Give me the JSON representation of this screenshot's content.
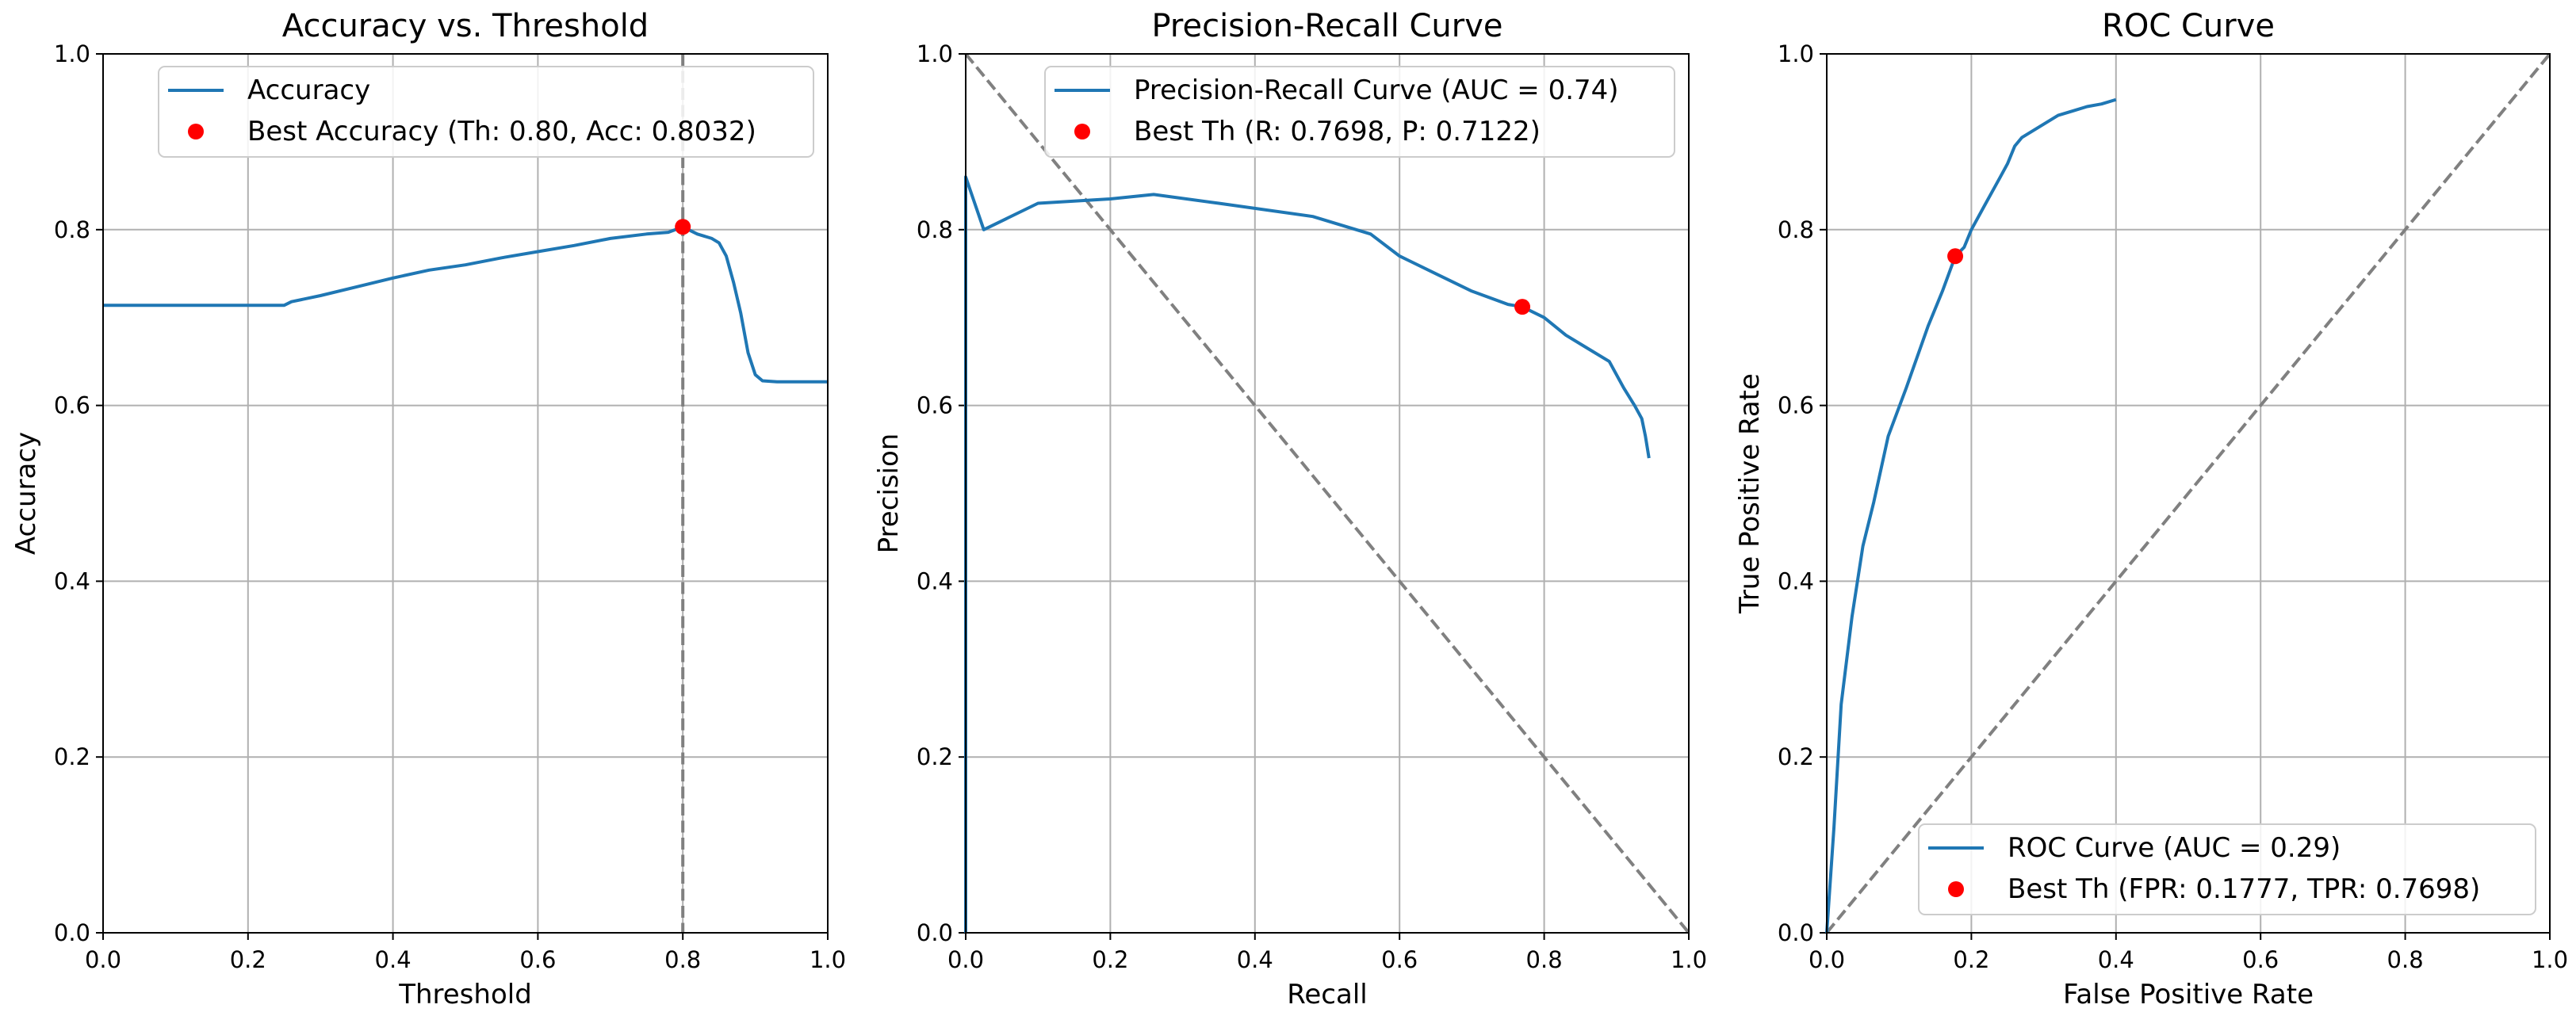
{
  "colors": {
    "line": "#1f77b4",
    "marker": "#ff0000",
    "reference": "#808080",
    "grid": "#b0b0b0",
    "axes": "#000000"
  },
  "chart_data": [
    {
      "type": "line",
      "title": "Accuracy vs. Threshold",
      "xlabel": "Threshold",
      "ylabel": "Accuracy",
      "xlim": [
        0,
        1
      ],
      "ylim": [
        0,
        1
      ],
      "xticks": [
        "0.0",
        "0.2",
        "0.4",
        "0.6",
        "0.8",
        "1.0"
      ],
      "yticks": [
        "0.0",
        "0.2",
        "0.4",
        "0.6",
        "0.8",
        "1.0"
      ],
      "grid": true,
      "legend_position": "top-right",
      "series": [
        {
          "name": "Accuracy",
          "x": [
            0.0,
            0.05,
            0.1,
            0.15,
            0.2,
            0.25,
            0.26,
            0.3,
            0.35,
            0.4,
            0.45,
            0.5,
            0.55,
            0.6,
            0.65,
            0.7,
            0.75,
            0.78,
            0.8,
            0.82,
            0.84,
            0.85,
            0.86,
            0.87,
            0.88,
            0.89,
            0.9,
            0.91,
            0.93,
            0.95,
            0.98,
            1.0
          ],
          "y": [
            0.714,
            0.714,
            0.714,
            0.714,
            0.714,
            0.714,
            0.718,
            0.725,
            0.735,
            0.745,
            0.754,
            0.76,
            0.768,
            0.775,
            0.782,
            0.79,
            0.795,
            0.797,
            0.8032,
            0.795,
            0.79,
            0.785,
            0.77,
            0.74,
            0.705,
            0.66,
            0.635,
            0.628,
            0.627,
            0.627,
            0.627,
            0.627
          ]
        }
      ],
      "markers": [
        {
          "name": "Best Accuracy (Th: 0.80, Acc: 0.8032)",
          "x": 0.8,
          "y": 0.8032
        }
      ],
      "reference_lines": [
        {
          "type": "vertical",
          "x": 0.8
        }
      ]
    },
    {
      "type": "line",
      "title": "Precision-Recall Curve",
      "xlabel": "Recall",
      "ylabel": "Precision",
      "xlim": [
        0,
        1
      ],
      "ylim": [
        0,
        1
      ],
      "xticks": [
        "0.0",
        "0.2",
        "0.4",
        "0.6",
        "0.8",
        "1.0"
      ],
      "yticks": [
        "0.0",
        "0.2",
        "0.4",
        "0.6",
        "0.8",
        "1.0"
      ],
      "grid": true,
      "legend_position": "top-right",
      "series": [
        {
          "name": "Precision-Recall Curve (AUC = 0.74)",
          "x": [
            0.0,
            0.0,
            0.025,
            0.1,
            0.2,
            0.26,
            0.35,
            0.48,
            0.56,
            0.6,
            0.65,
            0.7,
            0.75,
            0.7698,
            0.8,
            0.83,
            0.86,
            0.89,
            0.91,
            0.925,
            0.935,
            0.94,
            0.945
          ],
          "y": [
            0.0,
            0.86,
            0.8,
            0.83,
            0.835,
            0.84,
            0.83,
            0.815,
            0.795,
            0.77,
            0.75,
            0.73,
            0.715,
            0.7122,
            0.7,
            0.68,
            0.665,
            0.65,
            0.62,
            0.6,
            0.585,
            0.565,
            0.54
          ]
        }
      ],
      "markers": [
        {
          "name": "Best Th (R: 0.7698, P: 0.7122)",
          "x": 0.7698,
          "y": 0.7122
        }
      ],
      "reference_lines": [
        {
          "type": "diagonal",
          "points": [
            [
              0,
              1
            ],
            [
              1,
              0
            ]
          ]
        }
      ]
    },
    {
      "type": "line",
      "title": "ROC Curve",
      "xlabel": "False Positive Rate",
      "ylabel": "True Positive Rate",
      "xlim": [
        0,
        1
      ],
      "ylim": [
        0,
        1
      ],
      "xticks": [
        "0.0",
        "0.2",
        "0.4",
        "0.6",
        "0.8",
        "1.0"
      ],
      "yticks": [
        "0.0",
        "0.2",
        "0.4",
        "0.6",
        "0.8",
        "1.0"
      ],
      "grid": true,
      "legend_position": "bottom-right",
      "series": [
        {
          "name": "ROC Curve (AUC = 0.29)",
          "x": [
            0.0,
            0.01,
            0.02,
            0.035,
            0.05,
            0.065,
            0.085,
            0.11,
            0.14,
            0.16,
            0.1777,
            0.19,
            0.2,
            0.22,
            0.24,
            0.25,
            0.26,
            0.27,
            0.28,
            0.3,
            0.32,
            0.34,
            0.36,
            0.38,
            0.4
          ],
          "y": [
            0.0,
            0.12,
            0.26,
            0.36,
            0.44,
            0.49,
            0.565,
            0.62,
            0.69,
            0.73,
            0.7698,
            0.78,
            0.8,
            0.83,
            0.86,
            0.875,
            0.895,
            0.905,
            0.91,
            0.92,
            0.93,
            0.935,
            0.94,
            0.943,
            0.948
          ]
        }
      ],
      "markers": [
        {
          "name": "Best Th (FPR: 0.1777, TPR: 0.7698)",
          "x": 0.1777,
          "y": 0.7698
        }
      ],
      "reference_lines": [
        {
          "type": "diagonal",
          "points": [
            [
              0,
              0
            ],
            [
              1,
              1
            ]
          ]
        }
      ]
    }
  ]
}
